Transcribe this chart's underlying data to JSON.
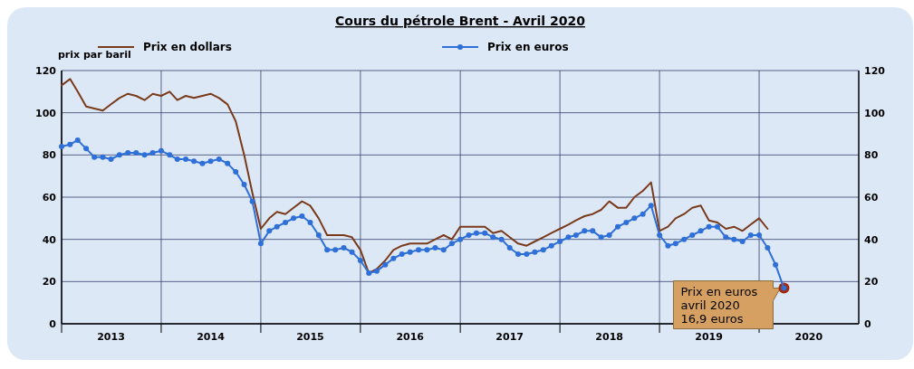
{
  "chart_data": {
    "type": "line",
    "title": "Cours du pétrole Brent - Avril 2020",
    "ylabel": "prix par baril",
    "x": [
      "2013-01",
      "2013-02",
      "2013-03",
      "2013-04",
      "2013-05",
      "2013-06",
      "2013-07",
      "2013-08",
      "2013-09",
      "2013-10",
      "2013-11",
      "2013-12",
      "2014-01",
      "2014-02",
      "2014-03",
      "2014-04",
      "2014-05",
      "2014-06",
      "2014-07",
      "2014-08",
      "2014-09",
      "2014-10",
      "2014-11",
      "2014-12",
      "2015-01",
      "2015-02",
      "2015-03",
      "2015-04",
      "2015-05",
      "2015-06",
      "2015-07",
      "2015-08",
      "2015-09",
      "2015-10",
      "2015-11",
      "2015-12",
      "2016-01",
      "2016-02",
      "2016-03",
      "2016-04",
      "2016-05",
      "2016-06",
      "2016-07",
      "2016-08",
      "2016-09",
      "2016-10",
      "2016-11",
      "2016-12",
      "2017-01",
      "2017-02",
      "2017-03",
      "2017-04",
      "2017-05",
      "2017-06",
      "2017-07",
      "2017-08",
      "2017-09",
      "2017-10",
      "2017-11",
      "2017-12",
      "2018-01",
      "2018-02",
      "2018-03",
      "2018-04",
      "2018-05",
      "2018-06",
      "2018-07",
      "2018-08",
      "2018-09",
      "2018-10",
      "2018-11",
      "2018-12",
      "2019-01",
      "2019-02",
      "2019-03",
      "2019-04",
      "2019-05",
      "2019-06",
      "2019-07",
      "2019-08",
      "2019-09",
      "2019-10",
      "2019-11",
      "2019-12",
      "2020-01",
      "2020-02",
      "2020-03",
      "2020-04"
    ],
    "series": [
      {
        "name": "Prix en dollars",
        "color": "#7a3b1c",
        "marker": "none",
        "values": [
          113,
          116,
          110,
          103,
          102,
          101,
          104,
          107,
          109,
          108,
          106,
          109,
          108,
          110,
          106,
          108,
          107,
          108,
          109,
          107,
          104,
          96,
          80,
          62,
          45,
          50,
          53,
          52,
          55,
          58,
          56,
          50,
          42,
          42,
          42,
          41,
          35,
          24,
          26,
          30,
          35,
          37,
          38,
          38,
          38,
          40,
          42,
          40,
          46,
          46,
          46,
          46,
          43,
          44,
          41,
          38,
          37,
          39,
          41,
          43,
          45,
          47,
          49,
          51,
          52,
          54,
          58,
          55,
          55,
          60,
          63,
          67,
          44,
          46,
          50,
          52,
          55,
          56,
          49,
          48,
          45,
          46,
          44,
          47,
          50,
          45,
          null,
          null
        ]
      },
      {
        "name": "Prix en euros",
        "color": "#2f6fd8",
        "marker": "circle",
        "values": [
          84,
          85,
          87,
          83,
          79,
          79,
          78,
          80,
          81,
          81,
          80,
          81,
          82,
          80,
          78,
          78,
          77,
          76,
          77,
          78,
          76,
          72,
          66,
          58,
          38,
          44,
          46,
          48,
          50,
          51,
          48,
          42,
          35,
          35,
          36,
          34,
          30,
          24,
          25,
          28,
          31,
          33,
          34,
          35,
          35,
          36,
          35,
          38,
          40,
          42,
          43,
          43,
          41,
          40,
          36,
          33,
          33,
          34,
          35,
          37,
          39,
          41,
          42,
          44,
          44,
          41,
          42,
          46,
          48,
          50,
          52,
          56,
          42,
          37,
          38,
          40,
          42,
          44,
          46,
          46,
          41,
          40,
          39,
          42,
          42,
          36,
          28,
          16.9
        ]
      }
    ],
    "xlim": [
      "2013-01-01",
      "2020-12-31"
    ],
    "xticks": [
      {
        "value": "2013-01-01",
        "label": null
      },
      {
        "value": "2013-07-01",
        "label": "2013"
      },
      {
        "value": "2014-01-01",
        "label": null
      },
      {
        "value": "2014-07-01",
        "label": "2014"
      },
      {
        "value": "2015-01-01",
        "label": null
      },
      {
        "value": "2015-07-01",
        "label": "2015"
      },
      {
        "value": "2016-01-01",
        "label": null
      },
      {
        "value": "2016-07-01",
        "label": "2016"
      },
      {
        "value": "2017-01-01",
        "label": null
      },
      {
        "value": "2017-07-01",
        "label": "2017"
      },
      {
        "value": "2018-01-01",
        "label": null
      },
      {
        "value": "2018-07-01",
        "label": "2018"
      },
      {
        "value": "2019-01-01",
        "label": null
      },
      {
        "value": "2019-07-01",
        "label": "2019"
      },
      {
        "value": "2020-01-01",
        "label": null
      },
      {
        "value": "2020-07-01",
        "label": "2020"
      }
    ],
    "ylim": [
      0,
      120
    ],
    "yticks": [
      0,
      20,
      40,
      60,
      80,
      100,
      120
    ],
    "y2lim": [
      0,
      120
    ],
    "y2ticks": [
      0,
      20,
      40,
      60,
      80,
      100,
      120
    ],
    "grid": true,
    "legend": "top",
    "annotations": [
      {
        "text": "Prix en euros\navril 2020\n16,9 euros",
        "x": "2020-04",
        "y": 16.9
      }
    ]
  }
}
